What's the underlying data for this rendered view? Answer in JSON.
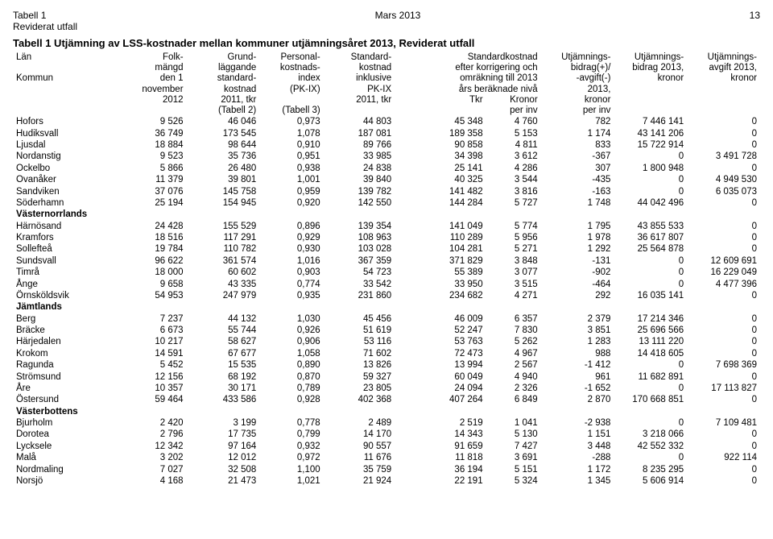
{
  "page": {
    "top_left": "Tabell 1",
    "top_center": "Mars 2013",
    "top_right": "13",
    "sub_left": "Reviderat utfall",
    "title": "Tabell 1   Utjämning av LSS-kostnader mellan kommuner utjämningsåret 2013, Reviderat utfall"
  },
  "header": [
    [
      "Län",
      "Folk-",
      "Grund-",
      "Personal-",
      "Standard-",
      "Standardkostnad",
      "Utjämnings-",
      "Utjämnings-",
      "Utjämnings-"
    ],
    [
      "",
      "mängd",
      "läggande",
      "kostnads-",
      "kostnad",
      "efter korrigering och",
      "bidrag(+)/",
      "bidrag 2013,",
      "avgift 2013,"
    ],
    [
      "Kommun",
      "den 1",
      "standard-",
      "index",
      "inklusive",
      "omräkning till 2013",
      "-avgift(-)",
      "kronor",
      "kronor"
    ],
    [
      "",
      "november",
      "kostnad",
      "(PK-IX)",
      "PK-IX",
      "års beräknade nivå",
      "2013,",
      "",
      ""
    ],
    [
      "",
      "2012",
      "2011, tkr",
      "",
      "2011, tkr",
      "Tkr              Kronor",
      "kronor",
      "",
      ""
    ],
    [
      "",
      "",
      "(Tabell 2)",
      "(Tabell 3)",
      "",
      "per inv",
      "per inv",
      "",
      ""
    ]
  ],
  "rows": [
    {
      "name": "Hofors",
      "v": [
        "9 526",
        "46 046",
        "0,973",
        "44 803",
        "45 348",
        "4 760",
        "782",
        "7 446 141",
        "0"
      ]
    },
    {
      "name": "Hudiksvall",
      "v": [
        "36 749",
        "173 545",
        "1,078",
        "187 081",
        "189 358",
        "5 153",
        "1 174",
        "43 141 206",
        "0"
      ]
    },
    {
      "name": "Ljusdal",
      "v": [
        "18 884",
        "98 644",
        "0,910",
        "89 766",
        "90 858",
        "4 811",
        "833",
        "15 722 914",
        "0"
      ]
    },
    {
      "name": "Nordanstig",
      "v": [
        "9 523",
        "35 736",
        "0,951",
        "33 985",
        "34 398",
        "3 612",
        "-367",
        "0",
        "3 491 728"
      ]
    },
    {
      "name": "Ockelbo",
      "v": [
        "5 866",
        "26 480",
        "0,938",
        "24 838",
        "25 141",
        "4 286",
        "307",
        "1 800 948",
        "0"
      ]
    },
    {
      "name": "Ovanåker",
      "v": [
        "11 379",
        "39 801",
        "1,001",
        "39 840",
        "40 325",
        "3 544",
        "-435",
        "0",
        "4 949 530"
      ]
    },
    {
      "name": "Sandviken",
      "v": [
        "37 076",
        "145 758",
        "0,959",
        "139 782",
        "141 482",
        "3 816",
        "-163",
        "0",
        "6 035 073"
      ]
    },
    {
      "name": "Söderhamn",
      "v": [
        "25 194",
        "154 945",
        "0,920",
        "142 550",
        "144 284",
        "5 727",
        "1 748",
        "44 042 496",
        "0"
      ]
    },
    {
      "name": "Västernorrlands",
      "bold": true
    },
    {
      "name": "Härnösand",
      "v": [
        "24 428",
        "155 529",
        "0,896",
        "139 354",
        "141 049",
        "5 774",
        "1 795",
        "43 855 533",
        "0"
      ]
    },
    {
      "name": "Kramfors",
      "v": [
        "18 516",
        "117 291",
        "0,929",
        "108 963",
        "110 289",
        "5 956",
        "1 978",
        "36 617 807",
        "0"
      ]
    },
    {
      "name": "Sollefteå",
      "v": [
        "19 784",
        "110 782",
        "0,930",
        "103 028",
        "104 281",
        "5 271",
        "1 292",
        "25 564 878",
        "0"
      ]
    },
    {
      "name": "Sundsvall",
      "v": [
        "96 622",
        "361 574",
        "1,016",
        "367 359",
        "371 829",
        "3 848",
        "-131",
        "0",
        "12 609 691"
      ]
    },
    {
      "name": "Timrå",
      "v": [
        "18 000",
        "60 602",
        "0,903",
        "54 723",
        "55 389",
        "3 077",
        "-902",
        "0",
        "16 229 049"
      ]
    },
    {
      "name": "Ånge",
      "v": [
        "9 658",
        "43 335",
        "0,774",
        "33 542",
        "33 950",
        "3 515",
        "-464",
        "0",
        "4 477 396"
      ]
    },
    {
      "name": "Örnsköldsvik",
      "v": [
        "54 953",
        "247 979",
        "0,935",
        "231 860",
        "234 682",
        "4 271",
        "292",
        "16 035 141",
        "0"
      ]
    },
    {
      "name": "Jämtlands",
      "bold": true
    },
    {
      "name": "Berg",
      "v": [
        "7 237",
        "44 132",
        "1,030",
        "45 456",
        "46 009",
        "6 357",
        "2 379",
        "17 214 346",
        "0"
      ]
    },
    {
      "name": "Bräcke",
      "v": [
        "6 673",
        "55 744",
        "0,926",
        "51 619",
        "52 247",
        "7 830",
        "3 851",
        "25 696 566",
        "0"
      ]
    },
    {
      "name": "Härjedalen",
      "v": [
        "10 217",
        "58 627",
        "0,906",
        "53 116",
        "53 763",
        "5 262",
        "1 283",
        "13 111 220",
        "0"
      ]
    },
    {
      "name": "Krokom",
      "v": [
        "14 591",
        "67 677",
        "1,058",
        "71 602",
        "72 473",
        "4 967",
        "988",
        "14 418 605",
        "0"
      ]
    },
    {
      "name": "Ragunda",
      "v": [
        "5 452",
        "15 535",
        "0,890",
        "13 826",
        "13 994",
        "2 567",
        "-1 412",
        "0",
        "7 698 369"
      ]
    },
    {
      "name": "Strömsund",
      "v": [
        "12 156",
        "68 192",
        "0,870",
        "59 327",
        "60 049",
        "4 940",
        "961",
        "11 682 891",
        "0"
      ]
    },
    {
      "name": "Åre",
      "v": [
        "10 357",
        "30 171",
        "0,789",
        "23 805",
        "24 094",
        "2 326",
        "-1 652",
        "0",
        "17 113 827"
      ]
    },
    {
      "name": "Östersund",
      "v": [
        "59 464",
        "433 586",
        "0,928",
        "402 368",
        "407 264",
        "6 849",
        "2 870",
        "170 668 851",
        "0"
      ]
    },
    {
      "name": "Västerbottens",
      "bold": true
    },
    {
      "name": "Bjurholm",
      "v": [
        "2 420",
        "3 199",
        "0,778",
        "2 489",
        "2 519",
        "1 041",
        "-2 938",
        "0",
        "7 109 481"
      ]
    },
    {
      "name": "Dorotea",
      "v": [
        "2 796",
        "17 735",
        "0,799",
        "14 170",
        "14 343",
        "5 130",
        "1 151",
        "3 218 066",
        "0"
      ]
    },
    {
      "name": "Lycksele",
      "v": [
        "12 342",
        "97 164",
        "0,932",
        "90 557",
        "91 659",
        "7 427",
        "3 448",
        "42 552 332",
        "0"
      ]
    },
    {
      "name": "Malå",
      "v": [
        "3 202",
        "12 012",
        "0,972",
        "11 676",
        "11 818",
        "3 691",
        "-288",
        "0",
        "922 114"
      ]
    },
    {
      "name": "Nordmaling",
      "v": [
        "7 027",
        "32 508",
        "1,100",
        "35 759",
        "36 194",
        "5 151",
        "1 172",
        "8 235 295",
        "0"
      ]
    },
    {
      "name": "Norsjö",
      "v": [
        "4 168",
        "21 473",
        "1,021",
        "21 924",
        "22 191",
        "5 324",
        "1 345",
        "5 606 914",
        "0"
      ]
    }
  ]
}
